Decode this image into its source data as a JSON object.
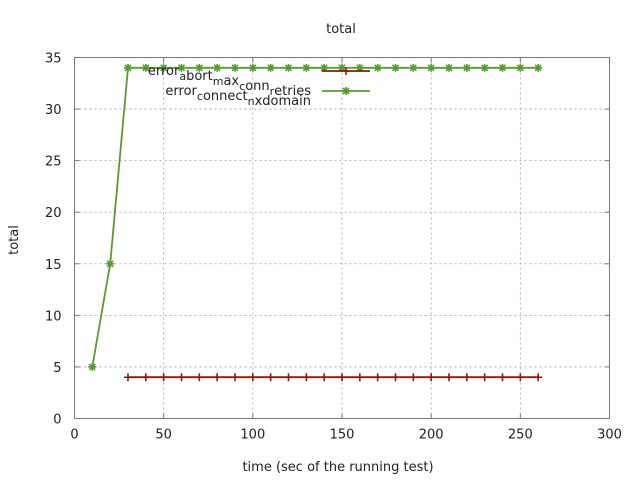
{
  "chart_data": {
    "type": "line",
    "title": "total",
    "xlabel": "time (sec of the running test)",
    "ylabel": "total",
    "xlim": [
      0,
      300
    ],
    "ylim": [
      0,
      35
    ],
    "xticks": [
      0,
      50,
      100,
      150,
      200,
      250,
      300
    ],
    "yticks": [
      0,
      5,
      10,
      15,
      20,
      25,
      30,
      35
    ],
    "xtick_labels": [
      "0",
      "50",
      "100",
      "150",
      "200",
      "250",
      "300"
    ],
    "ytick_labels": [
      "0",
      "5",
      "10",
      "15",
      "20",
      "25",
      "30",
      "35"
    ],
    "grid": true,
    "legend_position": "top-center",
    "series": [
      {
        "name": "error_abort_max_conn_retries",
        "legend_parts": [
          {
            "t": "error"
          },
          {
            "t": "a",
            "sub": true
          },
          {
            "t": "bort"
          },
          {
            "t": "m",
            "sub": true
          },
          {
            "t": "ax"
          },
          {
            "t": "c",
            "sub": true
          },
          {
            "t": "onn"
          },
          {
            "t": "r",
            "sub": true
          },
          {
            "t": "etries"
          }
        ],
        "color": "#8b1a0e",
        "marker": "plus",
        "x": [
          30,
          40,
          50,
          60,
          70,
          80,
          90,
          100,
          110,
          120,
          130,
          140,
          150,
          160,
          170,
          180,
          190,
          200,
          210,
          220,
          230,
          240,
          250,
          260
        ],
        "y": [
          4,
          4,
          4,
          4,
          4,
          4,
          4,
          4,
          4,
          4,
          4,
          4,
          4,
          4,
          4,
          4,
          4,
          4,
          4,
          4,
          4,
          4,
          4,
          4
        ]
      },
      {
        "name": "error_connect_nxdomain",
        "legend_parts": [
          {
            "t": "error"
          },
          {
            "t": "c",
            "sub": true
          },
          {
            "t": "onnect"
          },
          {
            "t": "n",
            "sub": true
          },
          {
            "t": "xdomain"
          }
        ],
        "color": "#5a9a32",
        "marker": "star",
        "x": [
          10,
          20,
          30,
          40,
          50,
          60,
          70,
          80,
          90,
          100,
          110,
          120,
          130,
          140,
          150,
          160,
          170,
          180,
          190,
          200,
          210,
          220,
          230,
          240,
          250,
          260
        ],
        "y": [
          5,
          15,
          34,
          34,
          34,
          34,
          34,
          34,
          34,
          34,
          34,
          34,
          34,
          34,
          34,
          34,
          34,
          34,
          34,
          34,
          34,
          34,
          34,
          34,
          34,
          34
        ]
      }
    ]
  }
}
